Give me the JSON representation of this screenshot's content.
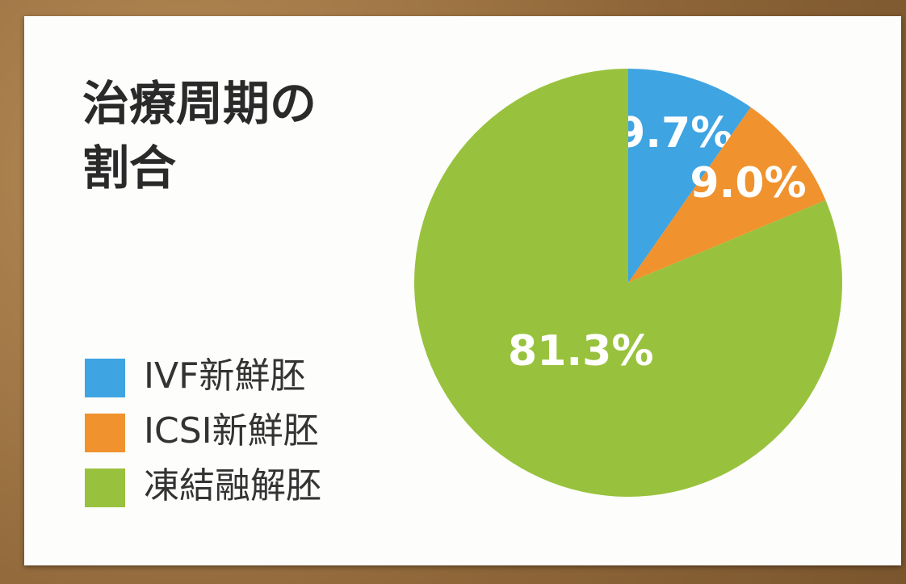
{
  "chart_data": {
    "type": "pie",
    "title": "治療周期の割合",
    "categories": [
      "IVF新鮮胚",
      "ICSI新鮮胚",
      "凍結融解胚"
    ],
    "values": [
      9.7,
      9.0,
      81.3
    ],
    "value_labels": [
      "9.7%",
      "9.0%",
      "81.3%"
    ],
    "colors": [
      "#3ea4e2",
      "#f0922e",
      "#98c23d"
    ]
  }
}
